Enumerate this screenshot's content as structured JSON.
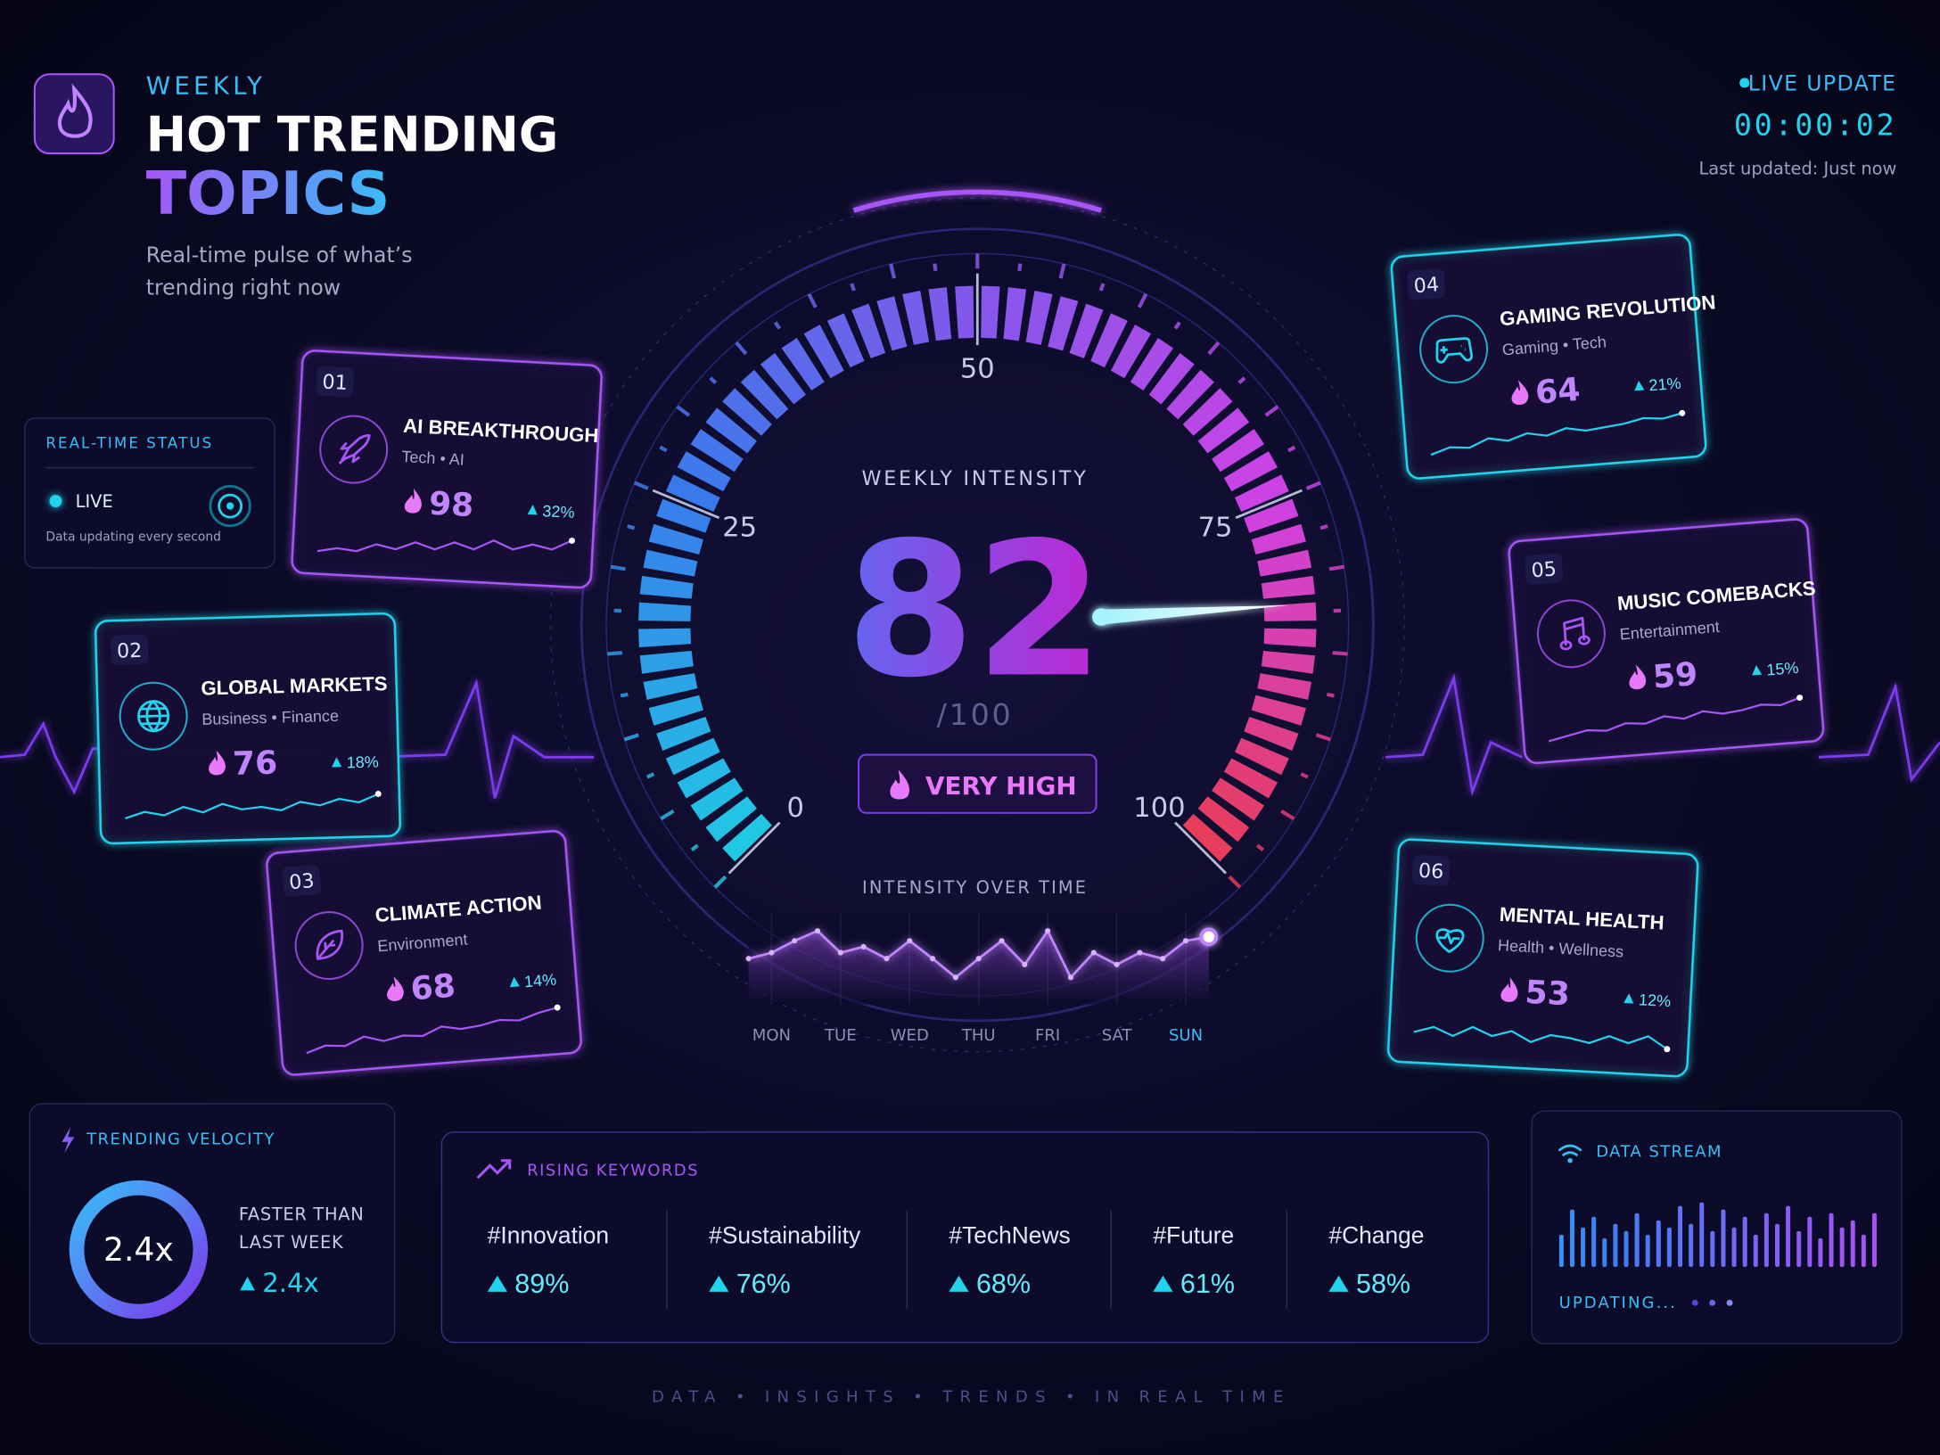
{
  "header": {
    "eyebrow": "WEEKLY",
    "title_line1": "HOT TRENDING",
    "title_line2": "TOPICS",
    "subtitle": [
      "Real-time pulse of what’s",
      "trending right now"
    ]
  },
  "live": {
    "label": "LIVE UPDATE",
    "timer": "00:00:02",
    "updated": "Last updated: Just now"
  },
  "status": {
    "title": "REAL-TIME STATUS",
    "state": "LIVE",
    "note": "Data updating every second"
  },
  "gauge": {
    "label": "WEEKLY INTENSITY",
    "value": 82,
    "max_label": "/100",
    "range": [
      0,
      100
    ],
    "ticks": [
      0,
      25,
      50,
      75,
      100
    ],
    "level": "VERY HIGH"
  },
  "intensity_chart": {
    "title": "INTENSITY OVER TIME",
    "categories": [
      null,
      "MON",
      null,
      null,
      "TUE",
      null,
      null,
      "WED",
      null,
      null,
      "THU",
      null,
      null,
      "FRI",
      null,
      null,
      "SAT",
      null,
      null,
      "SUN",
      null
    ],
    "values": [
      44,
      50,
      62,
      72,
      50,
      56,
      44,
      62,
      44,
      25,
      44,
      62,
      38,
      72,
      25,
      50,
      38,
      50,
      44,
      62,
      66
    ],
    "ylim": [
      0,
      100
    ]
  },
  "topics": [
    {
      "rank": "01",
      "title": "AI BREAKTHROUGH",
      "tags": "Tech • AI",
      "score": 98,
      "change": "32%",
      "color": "#a855f7",
      "trend": [
        20,
        30,
        25,
        45,
        35,
        55,
        40,
        60,
        45,
        70,
        50,
        65,
        55,
        80
      ]
    },
    {
      "rank": "02",
      "title": "GLOBAL MARKETS",
      "tags": "Business • Finance",
      "score": 76,
      "change": "18%",
      "color": "#22d3ee",
      "trend": [
        25,
        40,
        30,
        50,
        35,
        55,
        40,
        45,
        35,
        55,
        45,
        60,
        50,
        70
      ]
    },
    {
      "rank": "03",
      "title": "CLIMATE ACTION",
      "tags": "Environment",
      "score": 68,
      "change": "14%",
      "color": "#a855f7",
      "trend": [
        15,
        30,
        25,
        45,
        30,
        40,
        35,
        55,
        45,
        50,
        60,
        55,
        70,
        80
      ]
    },
    {
      "rank": "04",
      "title": "GAMING REVOLUTION",
      "tags": "Gaming • Tech",
      "score": 64,
      "change": "21%",
      "color": "#22d3ee",
      "trend": [
        20,
        35,
        30,
        50,
        40,
        55,
        45,
        60,
        50,
        55,
        60,
        70,
        65,
        75
      ]
    },
    {
      "rank": "05",
      "title": "MUSIC COMEBACKS",
      "tags": "Entertainment",
      "score": 59,
      "change": "15%",
      "color": "#a855f7",
      "trend": [
        15,
        25,
        35,
        30,
        45,
        40,
        55,
        45,
        60,
        50,
        55,
        65,
        60,
        75
      ]
    },
    {
      "rank": "06",
      "title": "MENTAL HEALTH",
      "tags": "Health • Wellness",
      "score": 53,
      "change": "12%",
      "color": "#22d3ee",
      "trend": [
        40,
        55,
        35,
        60,
        40,
        55,
        30,
        50,
        45,
        35,
        55,
        40,
        60,
        30
      ]
    }
  ],
  "velocity": {
    "title": "TRENDING VELOCITY",
    "value": "2.4x",
    "caption": [
      "FASTER THAN",
      "LAST WEEK"
    ],
    "change": "2.4x"
  },
  "keywords": {
    "title": "RISING KEYWORDS",
    "items": [
      {
        "tag": "#Innovation",
        "change": "89%"
      },
      {
        "tag": "#Sustainability",
        "change": "76%"
      },
      {
        "tag": "#TechNews",
        "change": "68%"
      },
      {
        "tag": "#Future",
        "change": "61%"
      },
      {
        "tag": "#Change",
        "change": "58%"
      }
    ]
  },
  "stream": {
    "title": "DATA STREAM",
    "bars": [
      45,
      80,
      55,
      70,
      40,
      60,
      50,
      75,
      45,
      65,
      55,
      85,
      60,
      90,
      50,
      80,
      55,
      70,
      45,
      75,
      60,
      85,
      50,
      70,
      40,
      75,
      55,
      65,
      45,
      75
    ],
    "status": "UPDATING..."
  },
  "footer": "DATA • INSIGHTS • TRENDS • IN REAL TIME"
}
